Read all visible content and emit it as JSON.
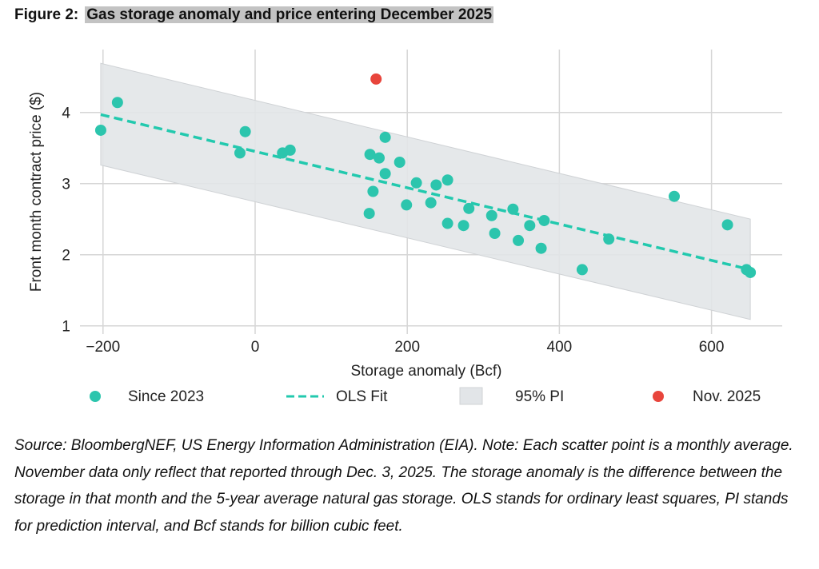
{
  "figure": {
    "label": "Figure 2:",
    "title": "Gas storage anomaly and price entering December 2025"
  },
  "caption": "Source: BloombergNEF, US Energy Information Administration (EIA). Note: Each scatter point is a monthly average. November data only reflect that reported through Dec. 3, 2025. The storage anomaly is the difference between the storage in that month and the 5-year average natural gas storage. OLS stands for ordinary least squares, PI stands for prediction interval, and Bcf stands for billion cubic feet.",
  "chart_data": {
    "type": "scatter",
    "xlabel": "Storage anomaly (Bcf)",
    "ylabel": "Front month contract price ($)",
    "xlim": [
      -230,
      690
    ],
    "ylim": [
      0.85,
      4.85
    ],
    "xticks": [
      -200,
      0,
      200,
      400,
      600
    ],
    "xtick_labels": [
      "−200",
      "0",
      "200",
      "400",
      "600"
    ],
    "yticks": [
      1,
      2,
      3,
      4
    ],
    "ytick_labels": [
      "1",
      "2",
      "3",
      "4"
    ],
    "grid": true,
    "legend_placement": "bottom",
    "colors": {
      "since_2023": "#2cc5ad",
      "ols": "#22c9ae",
      "pi": "#e2e5e8",
      "nov_2025": "#e8453c"
    },
    "series": [
      {
        "name": "Since 2023",
        "points": [
          [
            -203,
            3.75
          ],
          [
            -181,
            4.14
          ],
          [
            -20,
            3.43
          ],
          [
            -13,
            3.73
          ],
          [
            36,
            3.43
          ],
          [
            46,
            3.47
          ],
          [
            150,
            2.58
          ],
          [
            151,
            3.41
          ],
          [
            155,
            2.89
          ],
          [
            163,
            3.36
          ],
          [
            171,
            3.65
          ],
          [
            171,
            3.14
          ],
          [
            190,
            3.3
          ],
          [
            199,
            2.7
          ],
          [
            212,
            3.01
          ],
          [
            231,
            2.73
          ],
          [
            238,
            2.98
          ],
          [
            253,
            3.05
          ],
          [
            253,
            2.44
          ],
          [
            274,
            2.41
          ],
          [
            281,
            2.65
          ],
          [
            311,
            2.55
          ],
          [
            315,
            2.3
          ],
          [
            339,
            2.64
          ],
          [
            346,
            2.2
          ],
          [
            361,
            2.41
          ],
          [
            376,
            2.09
          ],
          [
            380,
            2.48
          ],
          [
            430,
            1.79
          ],
          [
            465,
            2.22
          ],
          [
            551,
            2.82
          ],
          [
            621,
            2.42
          ],
          [
            646,
            1.79
          ],
          [
            651,
            1.75
          ]
        ]
      },
      {
        "name": "OLS Fit",
        "line": [
          [
            -203,
            3.97
          ],
          [
            651,
            1.79
          ]
        ]
      },
      {
        "name": "95% PI",
        "upper": [
          [
            -203,
            4.69
          ],
          [
            651,
            2.5
          ]
        ],
        "lower": [
          [
            -203,
            3.26
          ],
          [
            651,
            1.09
          ]
        ]
      },
      {
        "name": "Nov. 2025",
        "points": [
          [
            159,
            4.47
          ]
        ]
      }
    ]
  }
}
